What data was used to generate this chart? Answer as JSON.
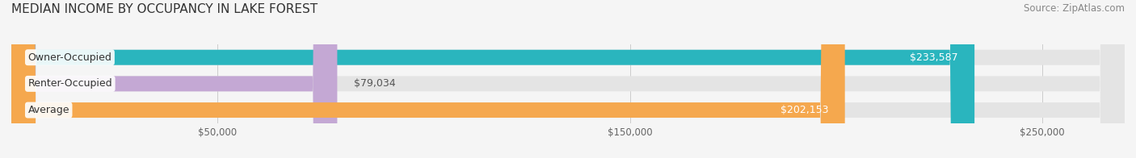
{
  "title": "MEDIAN INCOME BY OCCUPANCY IN LAKE FOREST",
  "source": "Source: ZipAtlas.com",
  "categories": [
    "Owner-Occupied",
    "Renter-Occupied",
    "Average"
  ],
  "values": [
    233587,
    79034,
    202153
  ],
  "bar_colors": [
    "#2ab5be",
    "#c4a8d4",
    "#f5a84e"
  ],
  "value_labels": [
    "$233,587",
    "$79,034",
    "$202,153"
  ],
  "value_inside": [
    true,
    false,
    true
  ],
  "xlim": [
    0,
    270000
  ],
  "xticks": [
    50000,
    150000,
    250000
  ],
  "xtick_labels": [
    "$50,000",
    "$150,000",
    "$250,000"
  ],
  "background_color": "#f5f5f5",
  "bar_background": "#e4e4e4",
  "bar_height": 0.58,
  "title_fontsize": 11,
  "source_fontsize": 8.5,
  "label_fontsize": 9,
  "value_fontsize": 9
}
